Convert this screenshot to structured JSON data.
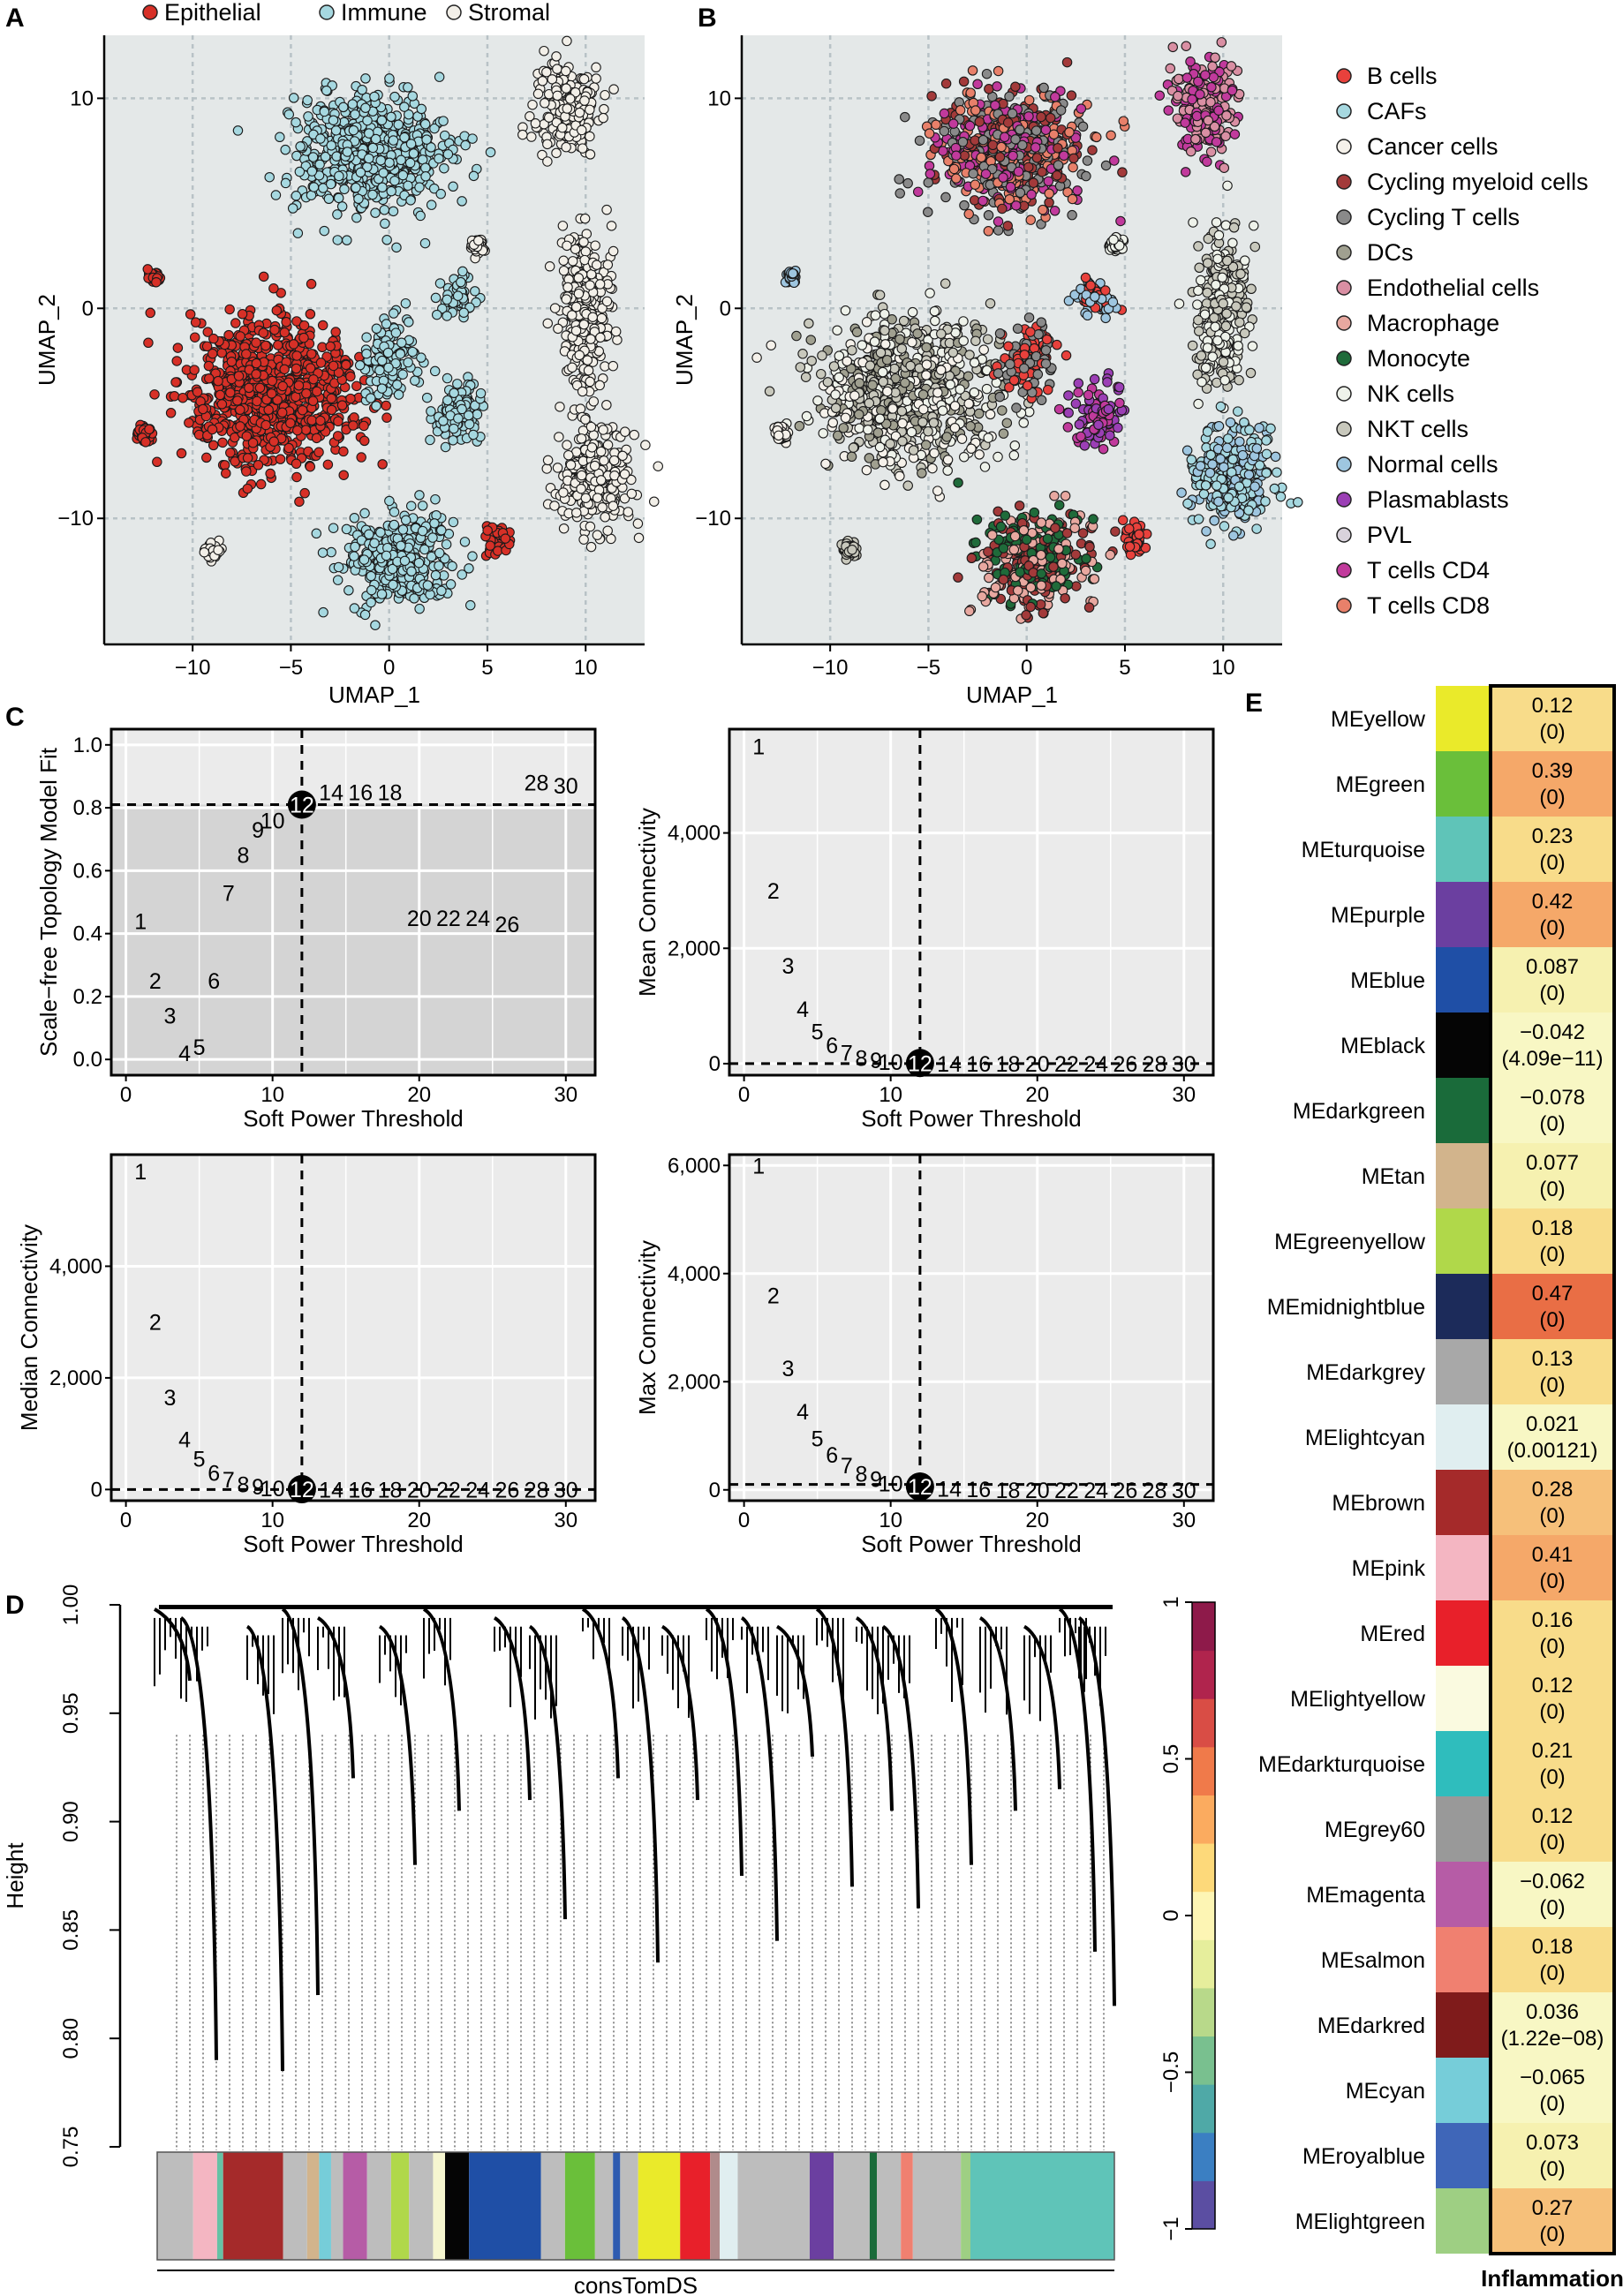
{
  "panels": {
    "a": "A",
    "b": "B",
    "c": "C",
    "d": "D",
    "e": "E"
  },
  "chart_data": [
    {
      "id": "A",
      "type": "scatter",
      "xlabel": "UMAP_1",
      "ylabel": "UMAP_2",
      "xlim": [
        -14.5,
        13
      ],
      "ylim": [
        -16,
        13
      ],
      "xticks": [
        -10,
        -5,
        0,
        5,
        10
      ],
      "yticks": [
        -10,
        0,
        10
      ],
      "xtick_labels": [
        "−10",
        "−5",
        "0",
        "5",
        "10"
      ],
      "ytick_labels": [
        "−10",
        "0",
        "10"
      ],
      "grid": true,
      "legend_position": "top",
      "legend": [
        {
          "name": "Epithelial",
          "color": "#d73027"
        },
        {
          "name": "Immune",
          "color": "#a6d8e0"
        },
        {
          "name": "Stromal",
          "color": "#f2efe8"
        }
      ],
      "clusters": [
        {
          "group": "Immune",
          "center": [
            -1,
            7.5
          ],
          "spread": [
            3.5,
            2.5
          ]
        },
        {
          "group": "Stromal",
          "center": [
            9,
            9.5
          ],
          "spread": [
            1.5,
            2.0
          ]
        },
        {
          "group": "Epithelial",
          "center": [
            -6,
            -4
          ],
          "spread": [
            4.0,
            3.0
          ]
        },
        {
          "group": "Immune",
          "center": [
            0,
            -2.5
          ],
          "spread": [
            1.2,
            1.5
          ]
        },
        {
          "group": "Immune",
          "center": [
            3.5,
            -5
          ],
          "spread": [
            1.2,
            1.2
          ]
        },
        {
          "group": "Immune",
          "center": [
            3.5,
            0.5
          ],
          "spread": [
            1.0,
            0.8
          ]
        },
        {
          "group": "Stromal",
          "center": [
            10,
            0
          ],
          "spread": [
            1.2,
            3.5
          ]
        },
        {
          "group": "Stromal",
          "center": [
            10.5,
            -8
          ],
          "spread": [
            1.8,
            2.2
          ]
        },
        {
          "group": "Immune",
          "center": [
            0.5,
            -12
          ],
          "spread": [
            2.5,
            2.0
          ]
        },
        {
          "group": "Epithelial",
          "center": [
            5.5,
            -11
          ],
          "spread": [
            0.5,
            0.6
          ]
        },
        {
          "group": "Epithelial",
          "center": [
            -12.5,
            -6
          ],
          "spread": [
            0.3,
            0.3
          ]
        },
        {
          "group": "Epithelial",
          "center": [
            -12,
            1.5
          ],
          "spread": [
            0.25,
            0.25
          ]
        },
        {
          "group": "Stromal",
          "center": [
            -9,
            -11.5
          ],
          "spread": [
            0.3,
            0.3
          ]
        },
        {
          "group": "Stromal",
          "center": [
            4.5,
            3
          ],
          "spread": [
            0.3,
            0.3
          ]
        }
      ]
    },
    {
      "id": "B",
      "type": "scatter",
      "xlabel": "UMAP_1",
      "ylabel": "UMAP_2",
      "xlim": [
        -14.5,
        13
      ],
      "ylim": [
        -16,
        13
      ],
      "xticks": [
        -10,
        -5,
        0,
        5,
        10
      ],
      "yticks": [
        -10,
        0,
        10
      ],
      "xtick_labels": [
        "−10",
        "−5",
        "0",
        "5",
        "10"
      ],
      "ytick_labels": [
        "−10",
        "0",
        "10"
      ],
      "grid": true,
      "legend_position": "right",
      "legend": [
        {
          "name": "B cells",
          "color": "#e8413c"
        },
        {
          "name": "CAFs",
          "color": "#a6d8e0"
        },
        {
          "name": "Cancer cells",
          "color": "#f5f1ea"
        },
        {
          "name": "Cycling myeloid cells",
          "color": "#a33a3a"
        },
        {
          "name": "Cycling T cells",
          "color": "#8a8a8a"
        },
        {
          "name": "DCs",
          "color": "#a0a090"
        },
        {
          "name": "Endothelial cells",
          "color": "#d98fa3"
        },
        {
          "name": "Macrophage",
          "color": "#e8a8a0"
        },
        {
          "name": "Monocyte",
          "color": "#1f6b3a"
        },
        {
          "name": "NK cells",
          "color": "#eef2ea"
        },
        {
          "name": "NKT cells",
          "color": "#c8c8bc"
        },
        {
          "name": "Normal cells",
          "color": "#9ec6e0"
        },
        {
          "name": "Plasmablasts",
          "color": "#9b3fb5"
        },
        {
          "name": "PVL",
          "color": "#d9d2dc"
        },
        {
          "name": "T cells CD4",
          "color": "#c13a9c"
        },
        {
          "name": "T cells CD8",
          "color": "#e8806a"
        }
      ]
    },
    {
      "id": "C1",
      "type": "scatter",
      "xlabel": "Soft Power Threshold",
      "ylabel": "Scale−free Topology Model Fit",
      "xlim": [
        -1,
        32
      ],
      "ylim": [
        -0.05,
        1.05
      ],
      "xticks": [
        0,
        10,
        20,
        30
      ],
      "yticks": [
        0.0,
        0.2,
        0.4,
        0.6,
        0.8,
        1.0
      ],
      "ytick_labels": [
        "0.0",
        "0.2",
        "0.4",
        "0.6",
        "0.8",
        "1.0"
      ],
      "threshold": {
        "x": 12,
        "y": 0.81
      },
      "selected_power": 12,
      "points": [
        {
          "p": 1,
          "y": 0.44
        },
        {
          "p": 2,
          "y": 0.25
        },
        {
          "p": 3,
          "y": 0.14
        },
        {
          "p": 4,
          "y": 0.02
        },
        {
          "p": 5,
          "y": 0.04
        },
        {
          "p": 6,
          "y": 0.25
        },
        {
          "p": 7,
          "y": 0.53
        },
        {
          "p": 8,
          "y": 0.65
        },
        {
          "p": 9,
          "y": 0.73
        },
        {
          "p": 10,
          "y": 0.76
        },
        {
          "p": 12,
          "y": 0.81
        },
        {
          "p": 14,
          "y": 0.85
        },
        {
          "p": 16,
          "y": 0.85
        },
        {
          "p": 18,
          "y": 0.85
        },
        {
          "p": 20,
          "y": 0.45
        },
        {
          "p": 22,
          "y": 0.45
        },
        {
          "p": 24,
          "y": 0.45
        },
        {
          "p": 26,
          "y": 0.43
        },
        {
          "p": 28,
          "y": 0.88
        },
        {
          "p": 30,
          "y": 0.87
        }
      ]
    },
    {
      "id": "C2",
      "type": "scatter",
      "xlabel": "Soft Power Threshold",
      "ylabel": "Mean Connectivity",
      "xlim": [
        -1,
        32
      ],
      "ylim": [
        -200,
        5800
      ],
      "xticks": [
        0,
        10,
        20,
        30
      ],
      "yticks": [
        0,
        2000,
        4000
      ],
      "ytick_labels": [
        "0",
        "2,000",
        "4,000"
      ],
      "threshold": {
        "x": 12,
        "y": 0
      },
      "selected_power": 12,
      "points": [
        {
          "p": 1,
          "y": 5500
        },
        {
          "p": 2,
          "y": 3000
        },
        {
          "p": 3,
          "y": 1700
        },
        {
          "p": 4,
          "y": 950
        },
        {
          "p": 5,
          "y": 560
        },
        {
          "p": 6,
          "y": 320
        },
        {
          "p": 7,
          "y": 190
        },
        {
          "p": 8,
          "y": 100
        },
        {
          "p": 9,
          "y": 60
        },
        {
          "p": 10,
          "y": 30
        },
        {
          "p": 12,
          "y": 10
        },
        {
          "p": 14,
          "y": 0
        },
        {
          "p": 16,
          "y": 0
        },
        {
          "p": 18,
          "y": 0
        },
        {
          "p": 20,
          "y": 0
        },
        {
          "p": 22,
          "y": 0
        },
        {
          "p": 24,
          "y": 0
        },
        {
          "p": 26,
          "y": 0
        },
        {
          "p": 28,
          "y": 0
        },
        {
          "p": 30,
          "y": 0
        }
      ]
    },
    {
      "id": "C3",
      "type": "scatter",
      "xlabel": "Soft Power Threshold",
      "ylabel": "Median Connectivity",
      "xlim": [
        -1,
        32
      ],
      "ylim": [
        -200,
        6000
      ],
      "xticks": [
        0,
        10,
        20,
        30
      ],
      "yticks": [
        0,
        2000,
        4000
      ],
      "ytick_labels": [
        "0",
        "2,000",
        "4,000"
      ],
      "threshold": {
        "x": 12,
        "y": 0
      },
      "selected_power": 12,
      "points": [
        {
          "p": 1,
          "y": 5700
        },
        {
          "p": 2,
          "y": 3000
        },
        {
          "p": 3,
          "y": 1650
        },
        {
          "p": 4,
          "y": 900
        },
        {
          "p": 5,
          "y": 550
        },
        {
          "p": 6,
          "y": 300
        },
        {
          "p": 7,
          "y": 180
        },
        {
          "p": 8,
          "y": 90
        },
        {
          "p": 9,
          "y": 50
        },
        {
          "p": 10,
          "y": 20
        },
        {
          "p": 12,
          "y": 5
        },
        {
          "p": 14,
          "y": 0
        },
        {
          "p": 16,
          "y": 0
        },
        {
          "p": 18,
          "y": 0
        },
        {
          "p": 20,
          "y": 0
        },
        {
          "p": 22,
          "y": 0
        },
        {
          "p": 24,
          "y": 0
        },
        {
          "p": 26,
          "y": 0
        },
        {
          "p": 28,
          "y": 0
        },
        {
          "p": 30,
          "y": 0
        }
      ]
    },
    {
      "id": "C4",
      "type": "scatter",
      "xlabel": "Soft Power Threshold",
      "ylabel": "Max Connectivity",
      "xlim": [
        -1,
        32
      ],
      "ylim": [
        -200,
        6200
      ],
      "xticks": [
        0,
        10,
        20,
        30
      ],
      "yticks": [
        0,
        2000,
        4000,
        6000
      ],
      "ytick_labels": [
        "0",
        "2,000",
        "4,000",
        "6,000"
      ],
      "threshold": {
        "x": 12,
        "y": 100
      },
      "selected_power": 12,
      "points": [
        {
          "p": 1,
          "y": 6000
        },
        {
          "p": 2,
          "y": 3600
        },
        {
          "p": 3,
          "y": 2250
        },
        {
          "p": 4,
          "y": 1450
        },
        {
          "p": 5,
          "y": 950
        },
        {
          "p": 6,
          "y": 650
        },
        {
          "p": 7,
          "y": 450
        },
        {
          "p": 8,
          "y": 300
        },
        {
          "p": 9,
          "y": 200
        },
        {
          "p": 10,
          "y": 120
        },
        {
          "p": 12,
          "y": 60
        },
        {
          "p": 14,
          "y": 20
        },
        {
          "p": 16,
          "y": 10
        },
        {
          "p": 18,
          "y": 0
        },
        {
          "p": 20,
          "y": 0
        },
        {
          "p": 22,
          "y": 0
        },
        {
          "p": 24,
          "y": 0
        },
        {
          "p": 26,
          "y": 0
        },
        {
          "p": 28,
          "y": 0
        },
        {
          "p": 30,
          "y": 0
        }
      ]
    },
    {
      "id": "D",
      "type": "dendrogram",
      "ylabel": "Height",
      "xlabel": "consTomDS",
      "ylim": [
        0.75,
        1.0
      ],
      "yticks": [
        0.75,
        0.8,
        0.85,
        0.9,
        0.95,
        1.0
      ],
      "ytick_labels": [
        "0.75",
        "0.80",
        "0.85",
        "0.90",
        "0.95",
        "1.00"
      ],
      "color_scale": {
        "ticks": [
          -1,
          -0.5,
          0,
          0.5,
          1
        ],
        "tick_labels": [
          "−1",
          "−0.5",
          "0",
          "0.5",
          "1"
        ],
        "colors": [
          "#5b4ea2",
          "#3b7fc2",
          "#4fa9a7",
          "#79c08f",
          "#b8d98a",
          "#e6ee9c",
          "#fdf5b4",
          "#fdd97a",
          "#fbab5f",
          "#f07a4a",
          "#d94d45",
          "#b0244d",
          "#8e1a4a"
        ]
      },
      "module_colors": [
        {
          "color": "#bdbdbd",
          "w": 3
        },
        {
          "color": "#f4b6c2",
          "w": 2
        },
        {
          "color": "#66c2a5",
          "w": 0.5
        },
        {
          "color": "#a52a2a",
          "w": 5
        },
        {
          "color": "#bdbdbd",
          "w": 2
        },
        {
          "color": "#d2b48c",
          "w": 1
        },
        {
          "color": "#76cdd9",
          "w": 1
        },
        {
          "color": "#bdbdbd",
          "w": 1
        },
        {
          "color": "#b65ca6",
          "w": 2
        },
        {
          "color": "#bdbdbd",
          "w": 2
        },
        {
          "color": "#b0d84a",
          "w": 1.5
        },
        {
          "color": "#bdbdbd",
          "w": 2
        },
        {
          "color": "#f6f6d0",
          "w": 1
        },
        {
          "color": "#050505",
          "w": 2
        },
        {
          "color": "#1f4fa6",
          "w": 6
        },
        {
          "color": "#bdbdbd",
          "w": 2
        },
        {
          "color": "#6abf3a",
          "w": 2.5
        },
        {
          "color": "#bdbdbd",
          "w": 1.5
        },
        {
          "color": "#2e5bb0",
          "w": 0.6
        },
        {
          "color": "#bdbdbd",
          "w": 1.5
        },
        {
          "color": "#eaea2a",
          "w": 3.5
        },
        {
          "color": "#e8202a",
          "w": 2.5
        },
        {
          "color": "#b08b8b",
          "w": 0.8
        },
        {
          "color": "#e0eef0",
          "w": 1.5
        },
        {
          "color": "#bdbdbd",
          "w": 6
        },
        {
          "color": "#6b3fa0",
          "w": 2
        },
        {
          "color": "#bdbdbd",
          "w": 3
        },
        {
          "color": "#1a6b3a",
          "w": 0.6
        },
        {
          "color": "#bdbdbd",
          "w": 2
        },
        {
          "color": "#f08070",
          "w": 1
        },
        {
          "color": "#bdbdbd",
          "w": 4
        },
        {
          "color": "#9ecf83",
          "w": 0.8
        },
        {
          "color": "#5fc4b8",
          "w": 12
        }
      ]
    },
    {
      "id": "E",
      "type": "heatmap",
      "xlabel": "Inflammation",
      "rows": [
        {
          "name": "MEyellow",
          "module_color": "#eaea2a",
          "value": 0.12,
          "text": "0.12",
          "p": "(0)"
        },
        {
          "name": "MEgreen",
          "module_color": "#6abf3a",
          "value": 0.39,
          "text": "0.39",
          "p": "(0)"
        },
        {
          "name": "MEturquoise",
          "module_color": "#5fc4b8",
          "value": 0.23,
          "text": "0.23",
          "p": "(0)"
        },
        {
          "name": "MEpurple",
          "module_color": "#6b3fa0",
          "value": 0.42,
          "text": "0.42",
          "p": "(0)"
        },
        {
          "name": "MEblue",
          "module_color": "#1f4fa6",
          "value": 0.087,
          "text": "0.087",
          "p": "(0)"
        },
        {
          "name": "MEblack",
          "module_color": "#050505",
          "value": -0.042,
          "text": "−0.042",
          "p": "(4.09e−11)"
        },
        {
          "name": "MEdarkgreen",
          "module_color": "#1a6b3a",
          "value": -0.078,
          "text": "−0.078",
          "p": "(0)"
        },
        {
          "name": "MEtan",
          "module_color": "#d2b48c",
          "value": 0.077,
          "text": "0.077",
          "p": "(0)"
        },
        {
          "name": "MEgreenyellow",
          "module_color": "#b0d84a",
          "value": 0.18,
          "text": "0.18",
          "p": "(0)"
        },
        {
          "name": "MEmidnightblue",
          "module_color": "#1c2b5a",
          "value": 0.47,
          "text": "0.47",
          "p": "(0)"
        },
        {
          "name": "MEdarkgrey",
          "module_color": "#a8a8a8",
          "value": 0.13,
          "text": "0.13",
          "p": "(0)"
        },
        {
          "name": "MElightcyan",
          "module_color": "#e0eef0",
          "value": 0.021,
          "text": "0.021",
          "p": "(0.00121)"
        },
        {
          "name": "MEbrown",
          "module_color": "#a52a2a",
          "value": 0.28,
          "text": "0.28",
          "p": "(0)"
        },
        {
          "name": "MEpink",
          "module_color": "#f4b6c2",
          "value": 0.41,
          "text": "0.41",
          "p": "(0)"
        },
        {
          "name": "MEred",
          "module_color": "#e8202a",
          "value": 0.16,
          "text": "0.16",
          "p": "(0)"
        },
        {
          "name": "MElightyellow",
          "module_color": "#fafae0",
          "value": 0.12,
          "text": "0.12",
          "p": "(0)"
        },
        {
          "name": "MEdarkturquoise",
          "module_color": "#2fbdbd",
          "value": 0.21,
          "text": "0.21",
          "p": "(0)"
        },
        {
          "name": "MEgrey60",
          "module_color": "#999999",
          "value": 0.12,
          "text": "0.12",
          "p": "(0)"
        },
        {
          "name": "MEmagenta",
          "module_color": "#b65ca6",
          "value": -0.062,
          "text": "−0.062",
          "p": "(0)"
        },
        {
          "name": "MEsalmon",
          "module_color": "#f08070",
          "value": 0.18,
          "text": "0.18",
          "p": "(0)"
        },
        {
          "name": "MEdarkred",
          "module_color": "#7f1b1b",
          "value": 0.036,
          "text": "0.036",
          "p": "(1.22e−08)"
        },
        {
          "name": "MEcyan",
          "module_color": "#76cdd9",
          "value": -0.065,
          "text": "−0.065",
          "p": "(0)"
        },
        {
          "name": "MEroyalblue",
          "module_color": "#3f66b8",
          "value": 0.073,
          "text": "0.073",
          "p": "(0)"
        },
        {
          "name": "MElightgreen",
          "module_color": "#9ecf83",
          "value": 0.27,
          "text": "0.27",
          "p": "(0)"
        }
      ]
    }
  ]
}
